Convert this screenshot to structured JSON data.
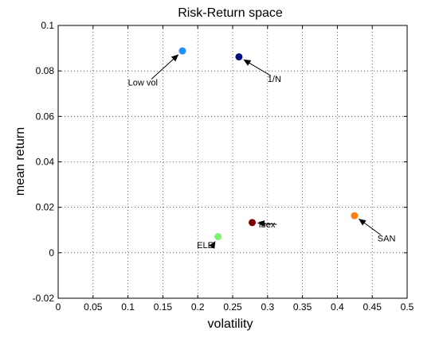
{
  "chart_data": {
    "type": "scatter",
    "title": "Risk-Return space",
    "xlabel": "volatility",
    "ylabel": "mean return",
    "xlim": [
      0,
      0.5
    ],
    "ylim": [
      -0.02,
      0.1
    ],
    "xticks": [
      0,
      0.05,
      0.1,
      0.15,
      0.2,
      0.25,
      0.3,
      0.35,
      0.4,
      0.45,
      0.5
    ],
    "xtick_labels": [
      "0",
      "0.05",
      "0.1",
      "0.15",
      "0.2",
      "0.25",
      "0.3",
      "0.35",
      "0.4",
      "0.45",
      "0.5"
    ],
    "yticks": [
      -0.02,
      0,
      0.02,
      0.04,
      0.06,
      0.08,
      0.1
    ],
    "ytick_labels": [
      "-0.02",
      "0",
      "0.02",
      "0.04",
      "0.06",
      "0.08",
      "0.1"
    ],
    "grid": true,
    "grid_style": "dotted",
    "points": [
      {
        "label": "Low vol",
        "x": 0.178,
        "y": 0.0888,
        "color": "#1e90ff",
        "text_x": 0.1,
        "text_y": 0.075,
        "text_anchor": "start"
      },
      {
        "label": "1/N",
        "x": 0.259,
        "y": 0.0862,
        "color": "#001080",
        "text_x": 0.3,
        "text_y": 0.0765,
        "text_anchor": "start"
      },
      {
        "label": "ELE",
        "x": 0.229,
        "y": 0.0071,
        "color": "#80f070",
        "text_x": 0.2225,
        "text_y": 0.0035,
        "text_anchor": "end"
      },
      {
        "label": "Ibex",
        "x": 0.278,
        "y": 0.0133,
        "color": "#800000",
        "text_x": 0.311,
        "text_y": 0.0125,
        "text_anchor": "end"
      },
      {
        "label": "SAN",
        "x": 0.4245,
        "y": 0.0163,
        "color": "#ff8010",
        "text_x": 0.4575,
        "text_y": 0.0065,
        "text_anchor": "start"
      }
    ]
  }
}
